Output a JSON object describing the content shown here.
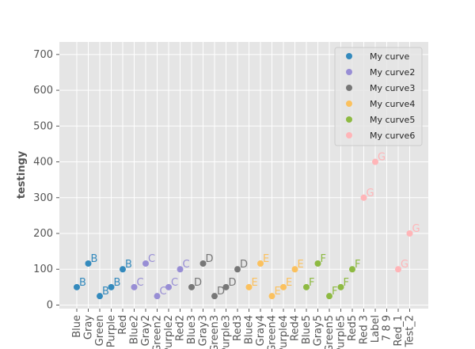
{
  "chart_data": {
    "type": "scatter",
    "title": "",
    "xlabel": "",
    "ylabel": "testingy",
    "ylim": [
      -10,
      735
    ],
    "yticks": [
      0,
      100,
      200,
      300,
      400,
      500,
      600,
      700
    ],
    "grid": true,
    "legend_position": "top-right",
    "categories": [
      "Blue",
      "Gray",
      "Green",
      "Purple",
      "Red",
      "Blue2",
      "Gray2",
      "Green2",
      "Purple2",
      "Red2",
      "Blue3",
      "Gray3",
      "Green3",
      "Purple3",
      "Red3",
      "Blue4",
      "Gray4",
      "Green4",
      "Purple4",
      "Red4",
      "Blue5",
      "Gray5",
      "Green5",
      "Purple5",
      "Red5",
      "Red 3",
      "Label",
      "7 8 9",
      "Red_1",
      "Test_2"
    ],
    "series": [
      {
        "name": "My curve",
        "color": "#348ABD",
        "label": "B",
        "points": [
          {
            "x": "Blue",
            "y": 50
          },
          {
            "x": "Gray",
            "y": 116
          },
          {
            "x": "Green",
            "y": 25
          },
          {
            "x": "Purple",
            "y": 50
          },
          {
            "x": "Red",
            "y": 100
          }
        ]
      },
      {
        "name": "My curve2",
        "color": "#988ED5",
        "label": "C",
        "points": [
          {
            "x": "Blue2",
            "y": 50
          },
          {
            "x": "Gray2",
            "y": 116
          },
          {
            "x": "Green2",
            "y": 25
          },
          {
            "x": "Purple2",
            "y": 50
          },
          {
            "x": "Red2",
            "y": 100
          }
        ]
      },
      {
        "name": "My curve3",
        "color": "#777777",
        "label": "D",
        "points": [
          {
            "x": "Blue3",
            "y": 50
          },
          {
            "x": "Gray3",
            "y": 116
          },
          {
            "x": "Green3",
            "y": 25
          },
          {
            "x": "Purple3",
            "y": 50
          },
          {
            "x": "Red3",
            "y": 100
          }
        ]
      },
      {
        "name": "My curve4",
        "color": "#FBC15E",
        "label": "E",
        "points": [
          {
            "x": "Blue4",
            "y": 50
          },
          {
            "x": "Gray4",
            "y": 116
          },
          {
            "x": "Green4",
            "y": 25
          },
          {
            "x": "Purple4",
            "y": 50
          },
          {
            "x": "Red4",
            "y": 100
          }
        ]
      },
      {
        "name": "My curve5",
        "color": "#8EBA42",
        "label": "F",
        "points": [
          {
            "x": "Blue5",
            "y": 50
          },
          {
            "x": "Gray5",
            "y": 116
          },
          {
            "x": "Green5",
            "y": 25
          },
          {
            "x": "Purple5",
            "y": 50
          },
          {
            "x": "Red5",
            "y": 100
          }
        ]
      },
      {
        "name": "My curve6",
        "color": "#FFB5B8",
        "label": "G",
        "points": [
          {
            "x": "Red 3",
            "y": 300
          },
          {
            "x": "Label",
            "y": 400
          },
          {
            "x": "Red_1",
            "y": 100
          },
          {
            "x": "Test_2",
            "y": 200
          }
        ]
      }
    ]
  }
}
